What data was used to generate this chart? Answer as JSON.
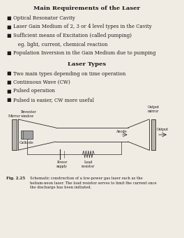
{
  "title1": "Main Requirements of the Laser",
  "bullets1": [
    "Optical Resonator Cavity",
    "Laser Gain Medium of 2, 3 or 4 level types in the Cavity",
    "Sufficient means of Excitation (called pumping)",
    "   eg. light, current, chemical reaction",
    "Population Inversion in the Gain Medium due to pumping"
  ],
  "title2": "Laser Types",
  "bullets2": [
    "Two main types depending on time operation",
    "Continuous Wave (CW)",
    "Pulsed operation",
    "Pulsed is easier, CW more useful"
  ],
  "fig_label": "Fig. 2.25",
  "fig_caption": "Schematic construction of a low-power gas laser such as the\nhelium-neon laser. The load resistor serves to limit the current once\nthe discharge has been initiated.",
  "bg_color": "#f0ece4",
  "text_color": "#1a1a1a",
  "diagram_color": "#2a2a2a",
  "bullet_indices": [
    0,
    1,
    2,
    4
  ],
  "indent_indices": [
    3
  ]
}
